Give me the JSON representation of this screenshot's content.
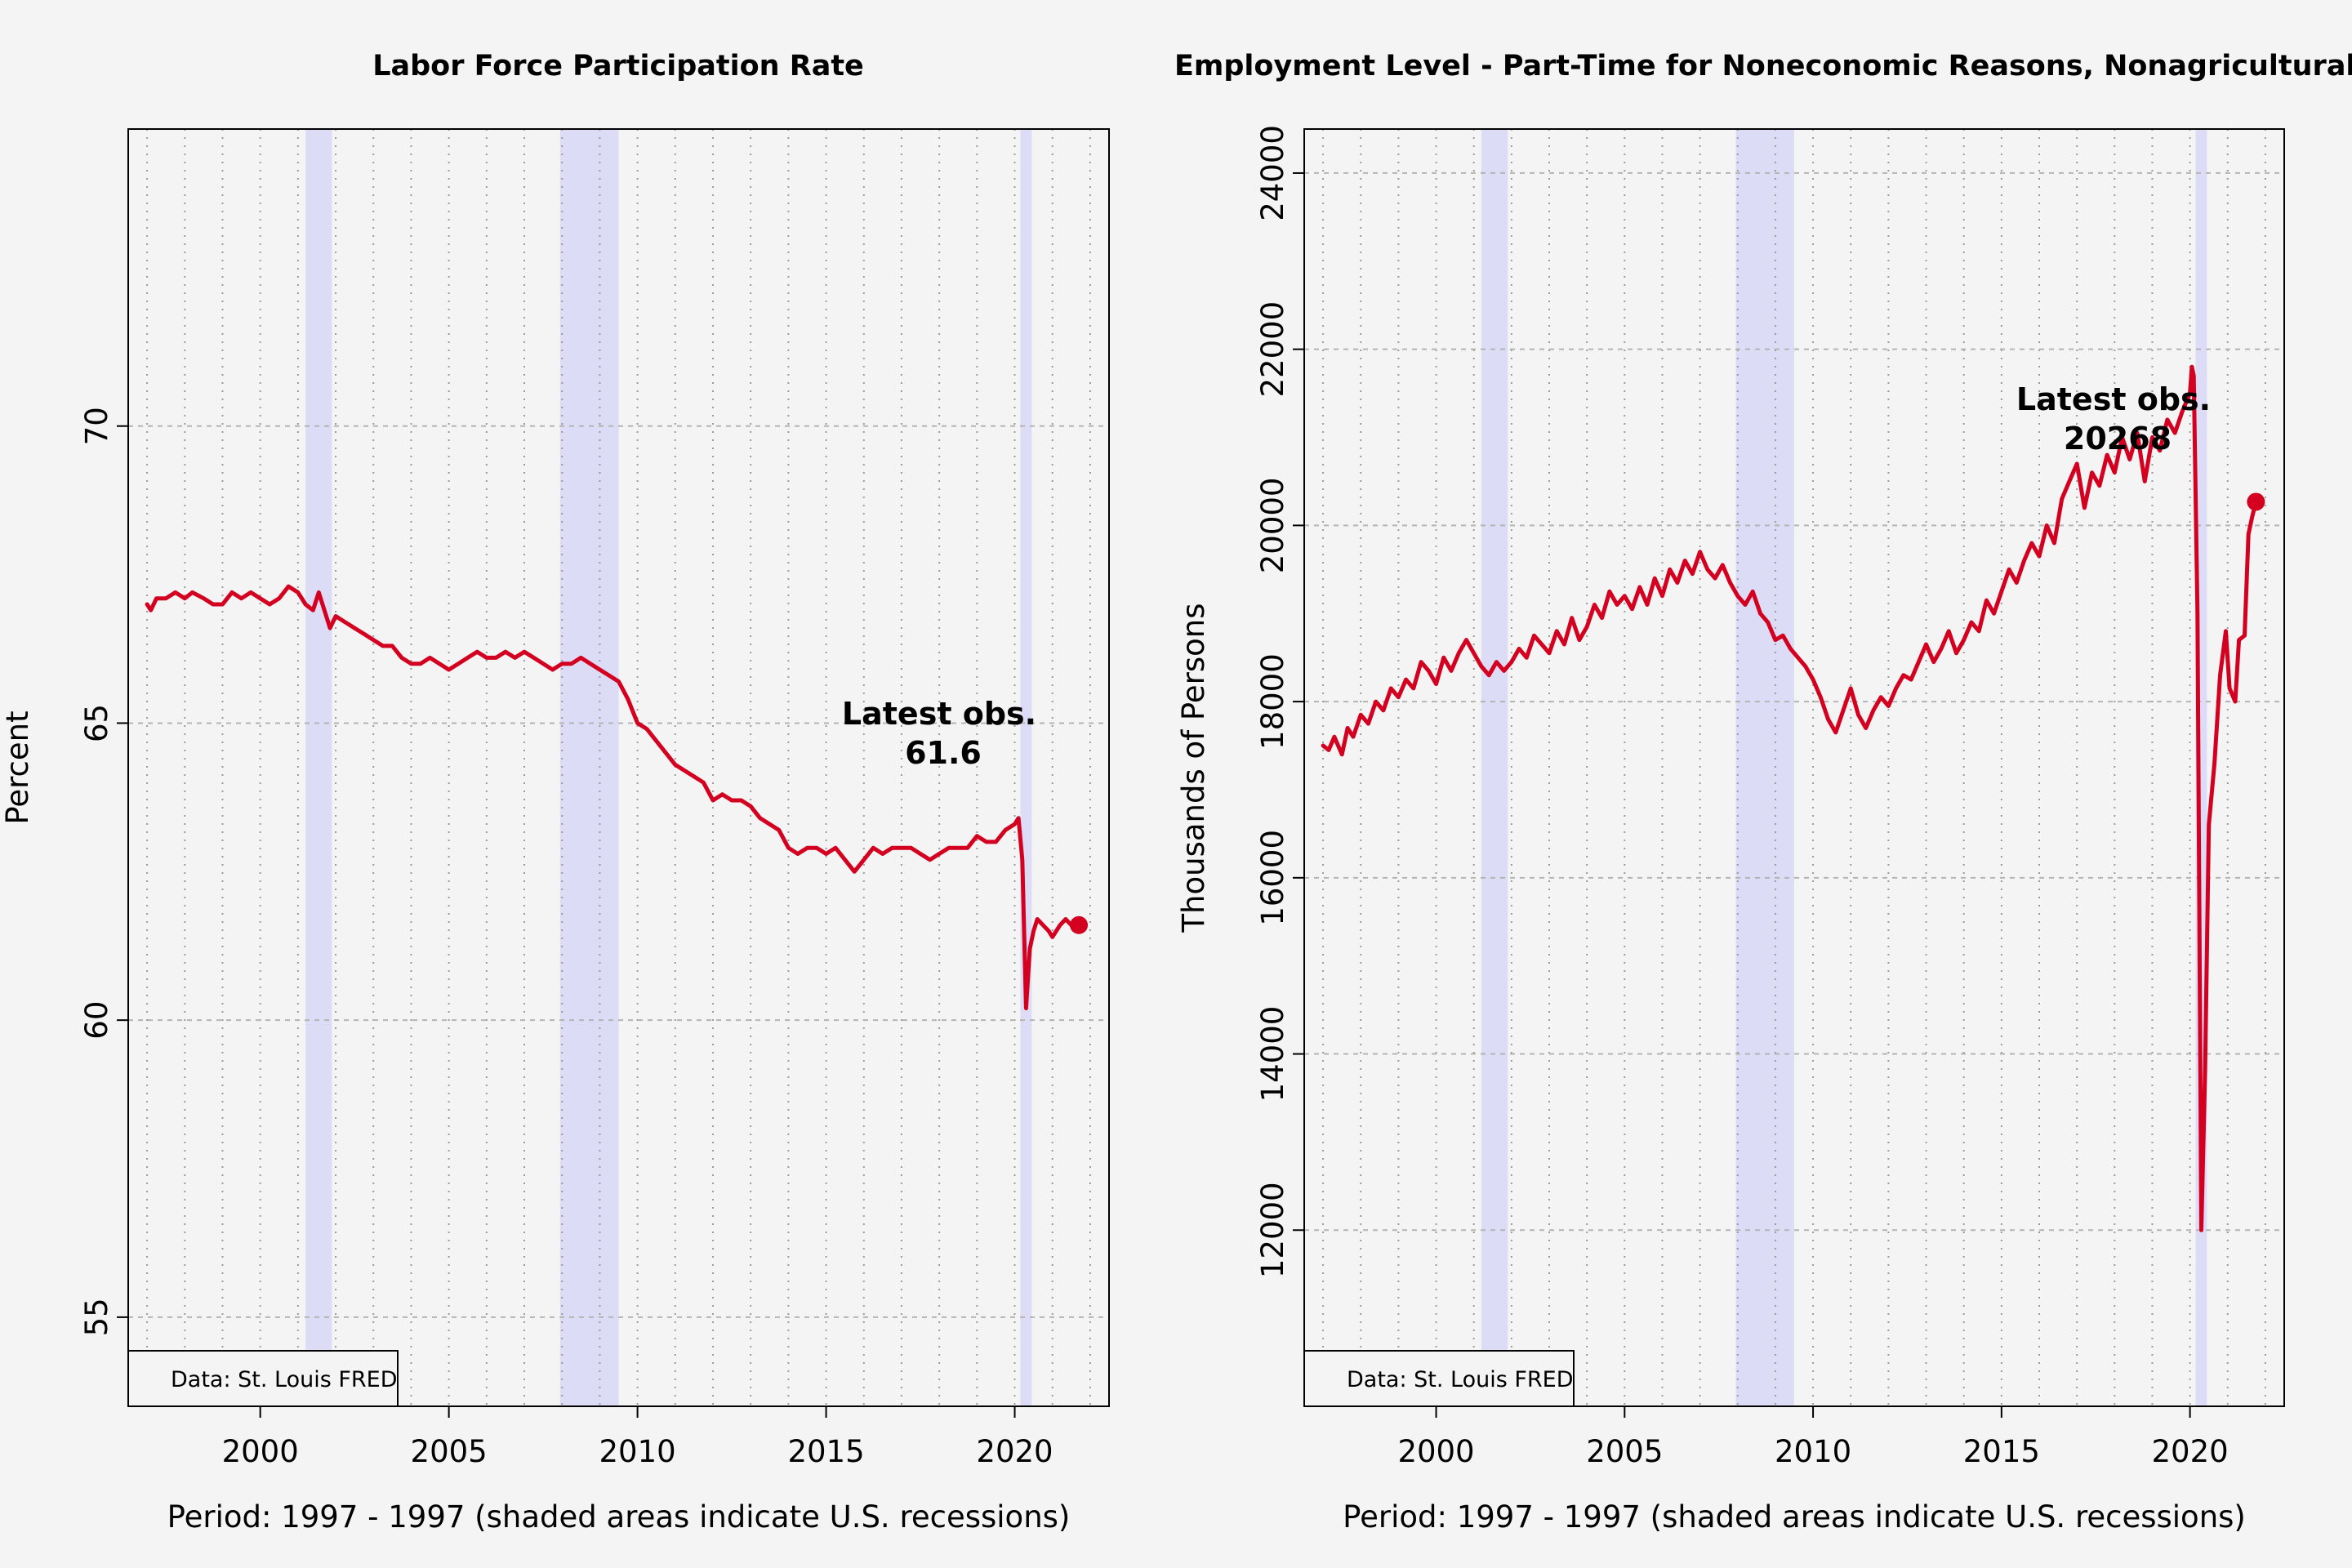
{
  "chart_data": [
    {
      "type": "line",
      "title": "Labor Force Participation Rate",
      "xlabel": "Period: 1997 - 1997 (shaded areas indicate U.S. recessions)",
      "ylabel": "Percent",
      "xlim": [
        1996.5,
        2022.5
      ],
      "ylim": [
        53.5,
        75
      ],
      "xticks": [
        2000,
        2005,
        2010,
        2015,
        2020
      ],
      "yticks": [
        55,
        60,
        65,
        70
      ],
      "grid": true,
      "recessions": [
        [
          2001.2,
          2001.9
        ],
        [
          2007.95,
          2009.5
        ],
        [
          2020.15,
          2020.45
        ]
      ],
      "source_note": "Data: St. Louis FRED",
      "latest_label": "Latest obs.",
      "latest_value": "61.6",
      "line_color": "#d40020",
      "recession_color": "#dcdcf6",
      "series": [
        {
          "points": [
            [
              1997.0,
              67.0
            ],
            [
              1997.1,
              66.9
            ],
            [
              1997.25,
              67.1
            ],
            [
              1997.5,
              67.1
            ],
            [
              1997.75,
              67.2
            ],
            [
              1998.0,
              67.1
            ],
            [
              1998.2,
              67.2
            ],
            [
              1998.5,
              67.1
            ],
            [
              1998.75,
              67.0
            ],
            [
              1999.0,
              67.0
            ],
            [
              1999.25,
              67.2
            ],
            [
              1999.5,
              67.1
            ],
            [
              1999.75,
              67.2
            ],
            [
              2000.0,
              67.1
            ],
            [
              2000.25,
              67.0
            ],
            [
              2000.5,
              67.1
            ],
            [
              2000.75,
              67.3
            ],
            [
              2001.0,
              67.2
            ],
            [
              2001.2,
              67.0
            ],
            [
              2001.4,
              66.9
            ],
            [
              2001.55,
              67.2
            ],
            [
              2001.75,
              66.8
            ],
            [
              2001.85,
              66.6
            ],
            [
              2002.0,
              66.8
            ],
            [
              2002.25,
              66.7
            ],
            [
              2002.5,
              66.6
            ],
            [
              2002.75,
              66.5
            ],
            [
              2003.0,
              66.4
            ],
            [
              2003.25,
              66.3
            ],
            [
              2003.5,
              66.3
            ],
            [
              2003.75,
              66.1
            ],
            [
              2004.0,
              66.0
            ],
            [
              2004.25,
              66.0
            ],
            [
              2004.5,
              66.1
            ],
            [
              2004.75,
              66.0
            ],
            [
              2005.0,
              65.9
            ],
            [
              2005.25,
              66.0
            ],
            [
              2005.5,
              66.1
            ],
            [
              2005.75,
              66.2
            ],
            [
              2006.0,
              66.1
            ],
            [
              2006.25,
              66.1
            ],
            [
              2006.5,
              66.2
            ],
            [
              2006.75,
              66.1
            ],
            [
              2007.0,
              66.2
            ],
            [
              2007.25,
              66.1
            ],
            [
              2007.5,
              66.0
            ],
            [
              2007.75,
              65.9
            ],
            [
              2008.0,
              66.0
            ],
            [
              2008.25,
              66.0
            ],
            [
              2008.5,
              66.1
            ],
            [
              2008.75,
              66.0
            ],
            [
              2009.0,
              65.9
            ],
            [
              2009.25,
              65.8
            ],
            [
              2009.5,
              65.7
            ],
            [
              2009.75,
              65.4
            ],
            [
              2010.0,
              65.0
            ],
            [
              2010.25,
              64.9
            ],
            [
              2010.5,
              64.7
            ],
            [
              2010.75,
              64.5
            ],
            [
              2011.0,
              64.3
            ],
            [
              2011.25,
              64.2
            ],
            [
              2011.5,
              64.1
            ],
            [
              2011.75,
              64.0
            ],
            [
              2012.0,
              63.7
            ],
            [
              2012.25,
              63.8
            ],
            [
              2012.5,
              63.7
            ],
            [
              2012.75,
              63.7
            ],
            [
              2013.0,
              63.6
            ],
            [
              2013.25,
              63.4
            ],
            [
              2013.5,
              63.3
            ],
            [
              2013.75,
              63.2
            ],
            [
              2014.0,
              62.9
            ],
            [
              2014.25,
              62.8
            ],
            [
              2014.5,
              62.9
            ],
            [
              2014.75,
              62.9
            ],
            [
              2015.0,
              62.8
            ],
            [
              2015.25,
              62.9
            ],
            [
              2015.5,
              62.7
            ],
            [
              2015.75,
              62.5
            ],
            [
              2016.0,
              62.7
            ],
            [
              2016.25,
              62.9
            ],
            [
              2016.5,
              62.8
            ],
            [
              2016.75,
              62.9
            ],
            [
              2017.0,
              62.9
            ],
            [
              2017.25,
              62.9
            ],
            [
              2017.5,
              62.8
            ],
            [
              2017.75,
              62.7
            ],
            [
              2018.0,
              62.8
            ],
            [
              2018.25,
              62.9
            ],
            [
              2018.5,
              62.9
            ],
            [
              2018.75,
              62.9
            ],
            [
              2019.0,
              63.1
            ],
            [
              2019.25,
              63.0
            ],
            [
              2019.5,
              63.0
            ],
            [
              2019.75,
              63.2
            ],
            [
              2020.0,
              63.3
            ],
            [
              2020.1,
              63.4
            ],
            [
              2020.2,
              62.7
            ],
            [
              2020.3,
              60.2
            ],
            [
              2020.4,
              61.2
            ],
            [
              2020.5,
              61.5
            ],
            [
              2020.6,
              61.7
            ],
            [
              2020.75,
              61.6
            ],
            [
              2020.9,
              61.5
            ],
            [
              2021.0,
              61.4
            ],
            [
              2021.2,
              61.6
            ],
            [
              2021.35,
              61.7
            ],
            [
              2021.5,
              61.6
            ],
            [
              2021.6,
              61.6
            ],
            [
              2021.7,
              61.6
            ]
          ]
        }
      ],
      "latest_point": [
        2021.7,
        61.6
      ]
    },
    {
      "type": "line",
      "title": "Employment Level - Part-Time for Noneconomic Reasons, Nonagricultural Industries",
      "xlabel": "Period: 1997 - 1997 (shaded areas indicate U.S. recessions)",
      "ylabel": "Thousands of Persons",
      "xlim": [
        1996.5,
        2022.5
      ],
      "ylim": [
        10000,
        24500
      ],
      "xticks": [
        2000,
        2005,
        2010,
        2015,
        2020
      ],
      "yticks": [
        12000,
        14000,
        16000,
        18000,
        20000,
        22000,
        24000
      ],
      "grid": true,
      "recessions": [
        [
          2001.2,
          2001.9
        ],
        [
          2007.95,
          2009.5
        ],
        [
          2020.15,
          2020.45
        ]
      ],
      "source_note": "Data: St. Louis FRED",
      "latest_label": "Latest obs.",
      "latest_value": "20268",
      "line_color": "#d40020",
      "recession_color": "#dcdcf6",
      "series": [
        {
          "points": [
            [
              1997.0,
              17500
            ],
            [
              1997.15,
              17450
            ],
            [
              1997.3,
              17600
            ],
            [
              1997.5,
              17400
            ],
            [
              1997.65,
              17700
            ],
            [
              1997.8,
              17600
            ],
            [
              1998.0,
              17850
            ],
            [
              1998.2,
              17750
            ],
            [
              1998.4,
              18000
            ],
            [
              1998.6,
              17900
            ],
            [
              1998.8,
              18150
            ],
            [
              1999.0,
              18050
            ],
            [
              1999.2,
              18250
            ],
            [
              1999.4,
              18150
            ],
            [
              1999.6,
              18450
            ],
            [
              1999.8,
              18350
            ],
            [
              2000.0,
              18200
            ],
            [
              2000.2,
              18500
            ],
            [
              2000.4,
              18350
            ],
            [
              2000.6,
              18550
            ],
            [
              2000.8,
              18700
            ],
            [
              2001.0,
              18550
            ],
            [
              2001.2,
              18400
            ],
            [
              2001.4,
              18300
            ],
            [
              2001.6,
              18450
            ],
            [
              2001.8,
              18350
            ],
            [
              2002.0,
              18450
            ],
            [
              2002.2,
              18600
            ],
            [
              2002.4,
              18500
            ],
            [
              2002.6,
              18750
            ],
            [
              2002.8,
              18650
            ],
            [
              2003.0,
              18550
            ],
            [
              2003.2,
              18800
            ],
            [
              2003.4,
              18650
            ],
            [
              2003.6,
              18950
            ],
            [
              2003.8,
              18700
            ],
            [
              2004.0,
              18850
            ],
            [
              2004.2,
              19100
            ],
            [
              2004.4,
              18950
            ],
            [
              2004.6,
              19250
            ],
            [
              2004.8,
              19100
            ],
            [
              2005.0,
              19200
            ],
            [
              2005.2,
              19050
            ],
            [
              2005.4,
              19300
            ],
            [
              2005.6,
              19100
            ],
            [
              2005.8,
              19400
            ],
            [
              2006.0,
              19200
            ],
            [
              2006.2,
              19500
            ],
            [
              2006.4,
              19350
            ],
            [
              2006.6,
              19600
            ],
            [
              2006.8,
              19450
            ],
            [
              2007.0,
              19700
            ],
            [
              2007.2,
              19500
            ],
            [
              2007.4,
              19400
            ],
            [
              2007.6,
              19550
            ],
            [
              2007.8,
              19350
            ],
            [
              2008.0,
              19200
            ],
            [
              2008.2,
              19100
            ],
            [
              2008.4,
              19250
            ],
            [
              2008.6,
              19000
            ],
            [
              2008.8,
              18900
            ],
            [
              2009.0,
              18700
            ],
            [
              2009.2,
              18750
            ],
            [
              2009.4,
              18600
            ],
            [
              2009.6,
              18500
            ],
            [
              2009.8,
              18400
            ],
            [
              2010.0,
              18250
            ],
            [
              2010.2,
              18050
            ],
            [
              2010.4,
              17800
            ],
            [
              2010.6,
              17650
            ],
            [
              2010.8,
              17900
            ],
            [
              2011.0,
              18150
            ],
            [
              2011.2,
              17850
            ],
            [
              2011.4,
              17700
            ],
            [
              2011.6,
              17900
            ],
            [
              2011.8,
              18050
            ],
            [
              2012.0,
              17950
            ],
            [
              2012.2,
              18150
            ],
            [
              2012.4,
              18300
            ],
            [
              2012.6,
              18250
            ],
            [
              2012.8,
              18450
            ],
            [
              2013.0,
              18650
            ],
            [
              2013.2,
              18450
            ],
            [
              2013.4,
              18600
            ],
            [
              2013.6,
              18800
            ],
            [
              2013.8,
              18550
            ],
            [
              2014.0,
              18700
            ],
            [
              2014.2,
              18900
            ],
            [
              2014.4,
              18800
            ],
            [
              2014.6,
              19150
            ],
            [
              2014.8,
              19000
            ],
            [
              2015.0,
              19250
            ],
            [
              2015.2,
              19500
            ],
            [
              2015.4,
              19350
            ],
            [
              2015.6,
              19600
            ],
            [
              2015.8,
              19800
            ],
            [
              2016.0,
              19650
            ],
            [
              2016.2,
              20000
            ],
            [
              2016.4,
              19800
            ],
            [
              2016.6,
              20300
            ],
            [
              2016.8,
              20500
            ],
            [
              2017.0,
              20700
            ],
            [
              2017.2,
              20200
            ],
            [
              2017.4,
              20600
            ],
            [
              2017.6,
              20450
            ],
            [
              2017.8,
              20800
            ],
            [
              2018.0,
              20600
            ],
            [
              2018.2,
              21000
            ],
            [
              2018.4,
              20750
            ],
            [
              2018.6,
              21050
            ],
            [
              2018.8,
              20500
            ],
            [
              2019.0,
              21000
            ],
            [
              2019.2,
              20850
            ],
            [
              2019.4,
              21200
            ],
            [
              2019.6,
              21050
            ],
            [
              2019.8,
              21300
            ],
            [
              2020.0,
              21500
            ],
            [
              2020.05,
              21800
            ],
            [
              2020.1,
              21700
            ],
            [
              2020.2,
              19000
            ],
            [
              2020.3,
              12000
            ],
            [
              2020.4,
              13800
            ],
            [
              2020.5,
              16600
            ],
            [
              2020.65,
              17300
            ],
            [
              2020.8,
              18300
            ],
            [
              2020.95,
              18800
            ],
            [
              2021.05,
              18150
            ],
            [
              2021.2,
              18000
            ],
            [
              2021.3,
              18700
            ],
            [
              2021.45,
              18750
            ],
            [
              2021.55,
              19900
            ],
            [
              2021.65,
              20100
            ],
            [
              2021.75,
              20268
            ]
          ]
        }
      ],
      "latest_point": [
        2021.75,
        20268
      ]
    }
  ]
}
